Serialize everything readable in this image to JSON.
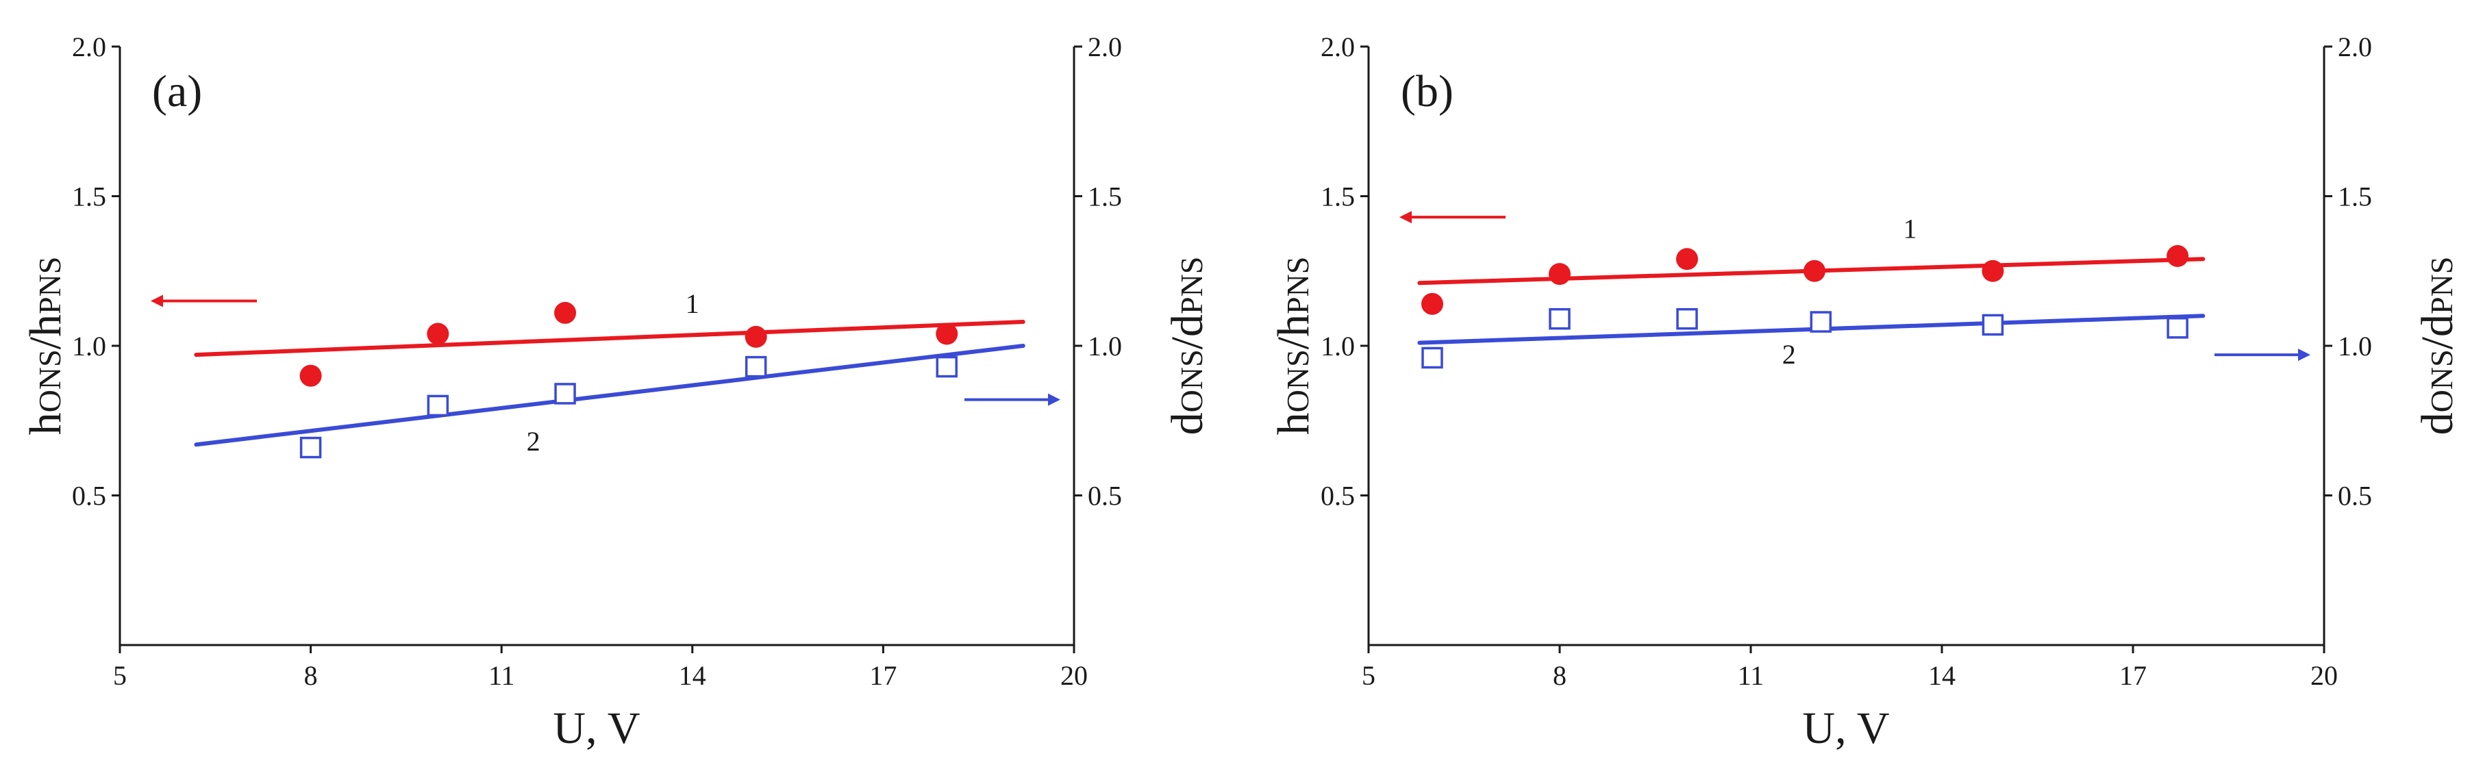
{
  "colors": {
    "series1": "#e8191f",
    "series2": "#3a4bd6",
    "axis": "#1a1a1a"
  },
  "chart_data": [
    {
      "type": "scatter",
      "panel_label": "(a)",
      "xlabel": "U, V",
      "ylabel_left": "hONS/hPNS",
      "ylabel_right": "dONS/dPNS",
      "xlim": [
        5,
        20
      ],
      "ylim_left": [
        0,
        2.0
      ],
      "ylim_right": [
        0,
        2.0
      ],
      "x_ticks": [
        "5",
        "8",
        "11",
        "14",
        "17",
        "20"
      ],
      "y_ticks_left": [
        "0.5",
        "1.0",
        "1.5",
        "2.0"
      ],
      "y_ticks_right": [
        "0.5",
        "1.0",
        "1.5",
        "2.0"
      ],
      "series": [
        {
          "name": "1",
          "axis": "left",
          "marker": "filled-circle",
          "x": [
            8,
            10,
            12,
            15,
            18
          ],
          "y": [
            0.9,
            1.04,
            1.11,
            1.03,
            1.04
          ],
          "fit": {
            "x": [
              6.2,
              19.2
            ],
            "y": [
              0.97,
              1.08
            ]
          },
          "label_at": {
            "x": 14,
            "y": 1.11
          }
        },
        {
          "name": "2",
          "axis": "right",
          "marker": "open-square",
          "x": [
            8,
            10,
            12,
            15,
            18
          ],
          "y": [
            0.66,
            0.8,
            0.84,
            0.93,
            0.93
          ],
          "fit": {
            "x": [
              6.2,
              19.2
            ],
            "y": [
              0.67,
              1.0
            ]
          },
          "label_at": {
            "x": 11.5,
            "y": 0.65
          }
        }
      ],
      "arrows": [
        {
          "side": "left",
          "series": "1",
          "y": 1.15
        },
        {
          "side": "right",
          "series": "2",
          "y": 0.82
        }
      ]
    },
    {
      "type": "scatter",
      "panel_label": "(b)",
      "xlabel": "U, V",
      "ylabel_left": "hONS/hPNS",
      "ylabel_right": "dONS/dPNS",
      "xlim": [
        5,
        20
      ],
      "ylim_left": [
        0,
        2.0
      ],
      "ylim_right": [
        0,
        2.0
      ],
      "x_ticks": [
        "5",
        "8",
        "11",
        "14",
        "17",
        "20"
      ],
      "y_ticks_left": [
        "0.5",
        "1.0",
        "1.5",
        "2.0"
      ],
      "y_ticks_right": [
        "0.5",
        "1.0",
        "1.5",
        "2.0"
      ],
      "series": [
        {
          "name": "1",
          "axis": "left",
          "marker": "filled-circle",
          "x": [
            6,
            8,
            10,
            12,
            14.8,
            17.7
          ],
          "y": [
            1.14,
            1.24,
            1.29,
            1.25,
            1.25,
            1.3
          ],
          "fit": {
            "x": [
              5.8,
              18.1
            ],
            "y": [
              1.21,
              1.29
            ]
          },
          "label_at": {
            "x": 13.5,
            "y": 1.36
          }
        },
        {
          "name": "2",
          "axis": "right",
          "marker": "open-square",
          "x": [
            6,
            8,
            10,
            12.1,
            14.8,
            17.7
          ],
          "y": [
            0.96,
            1.09,
            1.09,
            1.08,
            1.07,
            1.06
          ],
          "fit": {
            "x": [
              5.8,
              18.1
            ],
            "y": [
              1.01,
              1.1
            ]
          },
          "label_at": {
            "x": 11.6,
            "y": 0.94
          }
        }
      ],
      "arrows": [
        {
          "side": "left",
          "series": "1",
          "y": 1.43
        },
        {
          "side": "right",
          "series": "2",
          "y": 0.97
        }
      ]
    }
  ]
}
